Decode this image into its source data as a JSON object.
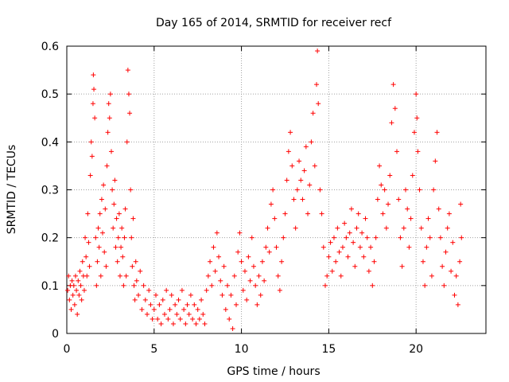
{
  "chart_data": {
    "type": "scatter",
    "title": "Day 165 of 2014, SRMTID for receiver recf",
    "xlabel": "GPS time / hours",
    "ylabel": "SRMTID / TECUs",
    "xlim": [
      0,
      24
    ],
    "ylim": [
      0,
      0.6
    ],
    "xticks": [
      0,
      5,
      10,
      15,
      20
    ],
    "yticks": [
      0,
      0.1,
      0.2,
      0.3,
      0.4,
      0.5,
      0.6
    ],
    "xtick_labels": [
      "0",
      "5",
      "10",
      "15",
      "20"
    ],
    "ytick_labels": [
      "0",
      "0.1",
      "0.2",
      "0.3",
      "0.4",
      "0.5",
      "0.6"
    ],
    "grid": true,
    "marker": "+",
    "color": "#ff0000",
    "series": [
      {
        "name": "SRMTID",
        "points": [
          [
            0.05,
            0.09
          ],
          [
            0.1,
            0.12
          ],
          [
            0.15,
            0.07
          ],
          [
            0.2,
            0.1
          ],
          [
            0.25,
            0.05
          ],
          [
            0.3,
            0.11
          ],
          [
            0.35,
            0.08
          ],
          [
            0.4,
            0.1
          ],
          [
            0.45,
            0.06
          ],
          [
            0.5,
            0.12
          ],
          [
            0.55,
            0.09
          ],
          [
            0.6,
            0.04
          ],
          [
            0.65,
            0.11
          ],
          [
            0.7,
            0.08
          ],
          [
            0.75,
            0.13
          ],
          [
            0.8,
            0.1
          ],
          [
            0.85,
            0.07
          ],
          [
            0.9,
            0.15
          ],
          [
            0.95,
            0.12
          ],
          [
            1.0,
            0.09
          ],
          [
            1.05,
            0.2
          ],
          [
            1.1,
            0.16
          ],
          [
            1.15,
            0.12
          ],
          [
            1.2,
            0.25
          ],
          [
            1.25,
            0.19
          ],
          [
            1.3,
            0.14
          ],
          [
            1.35,
            0.33
          ],
          [
            1.4,
            0.4
          ],
          [
            1.45,
            0.37
          ],
          [
            1.5,
            0.48
          ],
          [
            1.52,
            0.54
          ],
          [
            1.55,
            0.51
          ],
          [
            1.6,
            0.45
          ],
          [
            1.65,
            0.2
          ],
          [
            1.7,
            0.1
          ],
          [
            1.75,
            0.15
          ],
          [
            1.8,
            0.22
          ],
          [
            1.85,
            0.18
          ],
          [
            1.9,
            0.25
          ],
          [
            1.95,
            0.12
          ],
          [
            2.0,
            0.28
          ],
          [
            2.05,
            0.21
          ],
          [
            2.1,
            0.31
          ],
          [
            2.15,
            0.17
          ],
          [
            2.2,
            0.26
          ],
          [
            2.25,
            0.14
          ],
          [
            2.3,
            0.35
          ],
          [
            2.35,
            0.42
          ],
          [
            2.4,
            0.48
          ],
          [
            2.45,
            0.45
          ],
          [
            2.5,
            0.5
          ],
          [
            2.55,
            0.38
          ],
          [
            2.6,
            0.3
          ],
          [
            2.65,
            0.22
          ],
          [
            2.7,
            0.27
          ],
          [
            2.75,
            0.32
          ],
          [
            2.8,
            0.18
          ],
          [
            2.85,
            0.24
          ],
          [
            2.9,
            0.15
          ],
          [
            2.95,
            0.2
          ],
          [
            3.0,
            0.25
          ],
          [
            3.05,
            0.12
          ],
          [
            3.1,
            0.18
          ],
          [
            3.15,
            0.22
          ],
          [
            3.2,
            0.16
          ],
          [
            3.25,
            0.1
          ],
          [
            3.3,
            0.2
          ],
          [
            3.35,
            0.26
          ],
          [
            3.4,
            0.12
          ],
          [
            3.45,
            0.4
          ],
          [
            3.5,
            0.55
          ],
          [
            3.55,
            0.5
          ],
          [
            3.6,
            0.46
          ],
          [
            3.65,
            0.3
          ],
          [
            3.7,
            0.2
          ],
          [
            3.75,
            0.14
          ],
          [
            3.8,
            0.24
          ],
          [
            3.85,
            0.1
          ],
          [
            3.9,
            0.07
          ],
          [
            3.95,
            0.15
          ],
          [
            4.0,
            0.11
          ],
          [
            4.1,
            0.08
          ],
          [
            4.2,
            0.13
          ],
          [
            4.3,
            0.05
          ],
          [
            4.4,
            0.1
          ],
          [
            4.5,
            0.07
          ],
          [
            4.6,
            0.04
          ],
          [
            4.7,
            0.09
          ],
          [
            4.8,
            0.06
          ],
          [
            4.9,
            0.03
          ],
          [
            5.0,
            0.05
          ],
          [
            5.1,
            0.08
          ],
          [
            5.2,
            0.03
          ],
          [
            5.3,
            0.06
          ],
          [
            5.4,
            0.02
          ],
          [
            5.5,
            0.07
          ],
          [
            5.6,
            0.04
          ],
          [
            5.7,
            0.09
          ],
          [
            5.8,
            0.03
          ],
          [
            5.9,
            0.05
          ],
          [
            6.0,
            0.08
          ],
          [
            6.1,
            0.02
          ],
          [
            6.2,
            0.06
          ],
          [
            6.3,
            0.04
          ],
          [
            6.4,
            0.07
          ],
          [
            6.5,
            0.03
          ],
          [
            6.6,
            0.09
          ],
          [
            6.7,
            0.05
          ],
          [
            6.8,
            0.02
          ],
          [
            6.9,
            0.06
          ],
          [
            7.0,
            0.04
          ],
          [
            7.1,
            0.08
          ],
          [
            7.2,
            0.03
          ],
          [
            7.3,
            0.06
          ],
          [
            7.4,
            0.02
          ],
          [
            7.5,
            0.05
          ],
          [
            7.6,
            0.03
          ],
          [
            7.7,
            0.07
          ],
          [
            7.8,
            0.04
          ],
          [
            7.9,
            0.02
          ],
          [
            8.0,
            0.09
          ],
          [
            8.1,
            0.12
          ],
          [
            8.2,
            0.15
          ],
          [
            8.3,
            0.1
          ],
          [
            8.4,
            0.18
          ],
          [
            8.5,
            0.13
          ],
          [
            8.6,
            0.21
          ],
          [
            8.7,
            0.16
          ],
          [
            8.8,
            0.11
          ],
          [
            8.9,
            0.08
          ],
          [
            9.0,
            0.14
          ],
          [
            9.1,
            0.05
          ],
          [
            9.2,
            0.1
          ],
          [
            9.3,
            0.03
          ],
          [
            9.4,
            0.08
          ],
          [
            9.5,
            0.01
          ],
          [
            9.6,
            0.12
          ],
          [
            9.7,
            0.06
          ],
          [
            9.8,
            0.17
          ],
          [
            9.9,
            0.21
          ],
          [
            10.0,
            0.15
          ],
          [
            10.1,
            0.09
          ],
          [
            10.2,
            0.13
          ],
          [
            10.3,
            0.07
          ],
          [
            10.4,
            0.16
          ],
          [
            10.5,
            0.11
          ],
          [
            10.6,
            0.2
          ],
          [
            10.7,
            0.14
          ],
          [
            10.8,
            0.1
          ],
          [
            10.9,
            0.06
          ],
          [
            11.0,
            0.12
          ],
          [
            11.1,
            0.08
          ],
          [
            11.2,
            0.15
          ],
          [
            11.3,
            0.11
          ],
          [
            11.4,
            0.18
          ],
          [
            11.5,
            0.22
          ],
          [
            11.6,
            0.17
          ],
          [
            11.7,
            0.27
          ],
          [
            11.8,
            0.3
          ],
          [
            11.9,
            0.24
          ],
          [
            12.0,
            0.18
          ],
          [
            12.1,
            0.12
          ],
          [
            12.2,
            0.09
          ],
          [
            12.3,
            0.15
          ],
          [
            12.4,
            0.2
          ],
          [
            12.5,
            0.25
          ],
          [
            12.6,
            0.32
          ],
          [
            12.7,
            0.38
          ],
          [
            12.8,
            0.42
          ],
          [
            12.9,
            0.35
          ],
          [
            13.0,
            0.28
          ],
          [
            13.1,
            0.22
          ],
          [
            13.2,
            0.3
          ],
          [
            13.3,
            0.36
          ],
          [
            13.4,
            0.32
          ],
          [
            13.5,
            0.28
          ],
          [
            13.6,
            0.34
          ],
          [
            13.7,
            0.39
          ],
          [
            13.8,
            0.25
          ],
          [
            13.9,
            0.31
          ],
          [
            14.0,
            0.4
          ],
          [
            14.1,
            0.46
          ],
          [
            14.2,
            0.35
          ],
          [
            14.3,
            0.52
          ],
          [
            14.35,
            0.59
          ],
          [
            14.4,
            0.48
          ],
          [
            14.5,
            0.3
          ],
          [
            14.6,
            0.25
          ],
          [
            14.7,
            0.18
          ],
          [
            14.8,
            0.1
          ],
          [
            14.9,
            0.12
          ],
          [
            15.0,
            0.16
          ],
          [
            15.1,
            0.19
          ],
          [
            15.2,
            0.13
          ],
          [
            15.3,
            0.2
          ],
          [
            15.4,
            0.15
          ],
          [
            15.5,
            0.22
          ],
          [
            15.6,
            0.17
          ],
          [
            15.7,
            0.12
          ],
          [
            15.8,
            0.18
          ],
          [
            15.9,
            0.23
          ],
          [
            16.0,
            0.2
          ],
          [
            16.1,
            0.16
          ],
          [
            16.2,
            0.21
          ],
          [
            16.3,
            0.26
          ],
          [
            16.4,
            0.19
          ],
          [
            16.5,
            0.14
          ],
          [
            16.6,
            0.22
          ],
          [
            16.7,
            0.25
          ],
          [
            16.8,
            0.18
          ],
          [
            16.9,
            0.21
          ],
          [
            17.0,
            0.16
          ],
          [
            17.1,
            0.24
          ],
          [
            17.2,
            0.2
          ],
          [
            17.3,
            0.13
          ],
          [
            17.4,
            0.18
          ],
          [
            17.5,
            0.1
          ],
          [
            17.6,
            0.15
          ],
          [
            17.7,
            0.2
          ],
          [
            17.8,
            0.28
          ],
          [
            17.9,
            0.35
          ],
          [
            18.0,
            0.31
          ],
          [
            18.1,
            0.25
          ],
          [
            18.2,
            0.3
          ],
          [
            18.3,
            0.22
          ],
          [
            18.4,
            0.27
          ],
          [
            18.5,
            0.33
          ],
          [
            18.6,
            0.44
          ],
          [
            18.7,
            0.52
          ],
          [
            18.8,
            0.47
          ],
          [
            18.9,
            0.38
          ],
          [
            19.0,
            0.28
          ],
          [
            19.1,
            0.2
          ],
          [
            19.2,
            0.14
          ],
          [
            19.3,
            0.22
          ],
          [
            19.4,
            0.3
          ],
          [
            19.5,
            0.26
          ],
          [
            19.6,
            0.18
          ],
          [
            19.7,
            0.24
          ],
          [
            19.8,
            0.33
          ],
          [
            19.9,
            0.42
          ],
          [
            20.0,
            0.5
          ],
          [
            20.05,
            0.45
          ],
          [
            20.1,
            0.38
          ],
          [
            20.2,
            0.3
          ],
          [
            20.3,
            0.22
          ],
          [
            20.4,
            0.15
          ],
          [
            20.5,
            0.1
          ],
          [
            20.6,
            0.18
          ],
          [
            20.7,
            0.24
          ],
          [
            20.8,
            0.2
          ],
          [
            20.9,
            0.12
          ],
          [
            21.0,
            0.3
          ],
          [
            21.1,
            0.36
          ],
          [
            21.2,
            0.42
          ],
          [
            21.3,
            0.26
          ],
          [
            21.4,
            0.2
          ],
          [
            21.5,
            0.14
          ],
          [
            21.6,
            0.1
          ],
          [
            21.7,
            0.17
          ],
          [
            21.8,
            0.22
          ],
          [
            21.9,
            0.25
          ],
          [
            22.0,
            0.13
          ],
          [
            22.1,
            0.19
          ],
          [
            22.2,
            0.08
          ],
          [
            22.3,
            0.12
          ],
          [
            22.4,
            0.06
          ],
          [
            22.5,
            0.15
          ],
          [
            22.55,
            0.27
          ],
          [
            22.6,
            0.2
          ]
        ]
      }
    ]
  }
}
